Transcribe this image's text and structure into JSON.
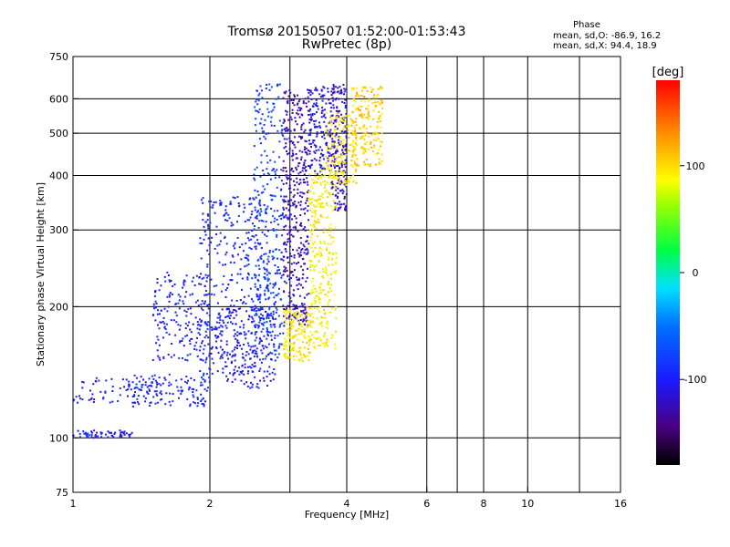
{
  "header": {
    "title": "Tromsø 20150507 01:52:00-01:53:43",
    "subtitle": "RwPretec (8p)"
  },
  "phase_info": {
    "title": "Phase",
    "o_line": "mean, sd,O: -86.9, 16.2",
    "x_line": "mean, sd,X: 94.4, 18.9"
  },
  "colorbar": {
    "unit": "[deg]",
    "ticks": [
      {
        "label": "100",
        "value": 100
      },
      {
        "label": "0",
        "value": 0
      },
      {
        "label": "-100",
        "value": -100
      }
    ],
    "range": [
      -180,
      180
    ]
  },
  "chart_data": {
    "type": "scatter",
    "title": "Tromsø 20150507 01:52:00-01:53:43",
    "subtitle": "RwPretec (8p)",
    "xlabel": "Frequency [MHz]",
    "ylabel": "Stationary phase Virtual Height [km]",
    "x_scale": "log",
    "y_scale": "log",
    "xlim": [
      1,
      16
    ],
    "ylim": [
      75,
      750
    ],
    "grid": true,
    "x_major_ticks": [
      {
        "label": "1",
        "value": 1
      },
      {
        "label": "2",
        "value": 2
      },
      {
        "label": "4",
        "value": 4
      },
      {
        "label": "16",
        "value": 16
      }
    ],
    "x_minor_ticks": [
      {
        "label": "6",
        "value": 6
      },
      {
        "label": "8",
        "value": 8
      },
      {
        "label": "10",
        "value": 10
      }
    ],
    "x_gridlines": [
      2,
      3,
      4,
      6,
      7,
      8,
      10,
      13
    ],
    "y_ticks": [
      {
        "label": "75",
        "value": 75
      },
      {
        "label": "100",
        "value": 100
      },
      {
        "label": "200",
        "value": 200
      },
      {
        "label": "300",
        "value": 300
      },
      {
        "label": "400",
        "value": 400
      },
      {
        "label": "500",
        "value": 500
      },
      {
        "label": "600",
        "value": 600
      },
      {
        "label": "750",
        "value": 750
      }
    ],
    "y_gridlines": [
      100,
      200,
      300,
      400,
      500,
      600
    ],
    "colorbar_label": "[deg]",
    "series": [
      {
        "mode": "O",
        "phase_mean": -86.9,
        "phase_sd": 16.2,
        "clusters": [
          {
            "f_range": [
              1.0,
              1.35
            ],
            "h_range": [
              100,
              104
            ],
            "phase": -100,
            "n": 60
          },
          {
            "f_range": [
              1.0,
              1.5
            ],
            "h_range": [
              120,
              138
            ],
            "phase": -100,
            "n": 70
          },
          {
            "f_range": [
              1.35,
              2.0
            ],
            "h_range": [
              118,
              140
            ],
            "phase": -95,
            "n": 120
          },
          {
            "f_range": [
              1.5,
              2.0
            ],
            "h_range": [
              150,
              240
            ],
            "phase": -100,
            "n": 180
          },
          {
            "f_range": [
              1.9,
              2.7
            ],
            "h_range": [
              140,
              360
            ],
            "phase": -95,
            "n": 380
          },
          {
            "f_range": [
              2.0,
              2.8
            ],
            "h_range": [
              130,
              200
            ],
            "phase": -105,
            "n": 180
          },
          {
            "f_range": [
              2.5,
              2.9
            ],
            "h_range": [
              150,
              650
            ],
            "phase": -80,
            "n": 320
          },
          {
            "f_range": [
              2.9,
              3.3
            ],
            "h_range": [
              180,
              640
            ],
            "phase": -125,
            "n": 420
          },
          {
            "f_range": [
              3.3,
              3.7
            ],
            "h_range": [
              400,
              640
            ],
            "phase": -110,
            "n": 160
          },
          {
            "f_range": [
              3.7,
              4.0
            ],
            "h_range": [
              330,
              650
            ],
            "phase": -120,
            "n": 200
          }
        ]
      },
      {
        "mode": "X",
        "phase_mean": 94.4,
        "phase_sd": 18.9,
        "clusters": [
          {
            "f_range": [
              2.9,
              3.35
            ],
            "h_range": [
              150,
              200
            ],
            "phase": 95,
            "n": 150
          },
          {
            "f_range": [
              3.3,
              3.8
            ],
            "h_range": [
              160,
              420
            ],
            "phase": 90,
            "n": 320
          },
          {
            "f_range": [
              3.6,
              4.2
            ],
            "h_range": [
              380,
              560
            ],
            "phase": 100,
            "n": 140
          },
          {
            "f_range": [
              4.1,
              4.8
            ],
            "h_range": [
              420,
              640
            ],
            "phase": 105,
            "n": 200
          }
        ]
      }
    ]
  }
}
